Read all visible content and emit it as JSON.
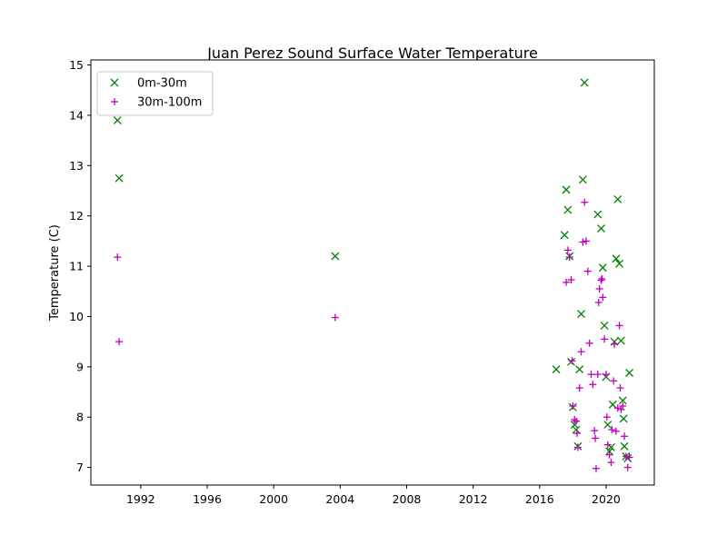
{
  "chart_data": {
    "type": "scatter",
    "title": "Juan Perez Sound Surface Water Temperature",
    "xlabel": "",
    "ylabel": "Temperature (C)",
    "xlim": [
      1989.0,
      2022.9
    ],
    "ylim": [
      6.65,
      15.1
    ],
    "xticks": [
      "1992",
      "1996",
      "2000",
      "2004",
      "2008",
      "2012",
      "2016",
      "2020"
    ],
    "yticks": [
      "7",
      "8",
      "9",
      "10",
      "11",
      "12",
      "13",
      "14",
      "15"
    ],
    "legend_position": "top-left",
    "grid": false,
    "series": [
      {
        "name": "0m-30m",
        "marker": "x",
        "color": "#008000",
        "points": [
          [
            1990.6,
            13.9
          ],
          [
            1990.7,
            12.75
          ],
          [
            2003.7,
            11.2
          ],
          [
            2017.0,
            8.95
          ],
          [
            2017.5,
            11.62
          ],
          [
            2017.6,
            12.52
          ],
          [
            2017.7,
            12.12
          ],
          [
            2017.8,
            11.2
          ],
          [
            2017.9,
            9.1
          ],
          [
            2018.0,
            8.2
          ],
          [
            2018.1,
            7.85
          ],
          [
            2018.2,
            7.75
          ],
          [
            2018.3,
            7.42
          ],
          [
            2018.4,
            8.95
          ],
          [
            2018.5,
            10.05
          ],
          [
            2018.6,
            12.72
          ],
          [
            2018.7,
            14.65
          ],
          [
            2019.5,
            12.03
          ],
          [
            2019.7,
            11.75
          ],
          [
            2019.8,
            10.97
          ],
          [
            2019.9,
            9.82
          ],
          [
            2020.0,
            8.8
          ],
          [
            2020.1,
            7.85
          ],
          [
            2020.2,
            7.32
          ],
          [
            2020.3,
            7.4
          ],
          [
            2020.4,
            8.25
          ],
          [
            2020.5,
            9.5
          ],
          [
            2020.6,
            11.15
          ],
          [
            2020.7,
            12.33
          ],
          [
            2020.8,
            11.05
          ],
          [
            2020.9,
            9.52
          ],
          [
            2021.0,
            8.33
          ],
          [
            2021.05,
            7.97
          ],
          [
            2021.1,
            7.42
          ],
          [
            2021.2,
            7.22
          ],
          [
            2021.3,
            7.18
          ],
          [
            2021.4,
            8.88
          ]
        ]
      },
      {
        "name": "30m-100m",
        "marker": "+",
        "color": "#bf00bf",
        "points": [
          [
            1990.6,
            11.18
          ],
          [
            1990.7,
            9.5
          ],
          [
            2003.7,
            9.98
          ],
          [
            2017.6,
            10.68
          ],
          [
            2017.7,
            11.32
          ],
          [
            2017.8,
            11.18
          ],
          [
            2017.9,
            10.73
          ],
          [
            2017.95,
            9.12
          ],
          [
            2018.0,
            8.22
          ],
          [
            2018.1,
            7.95
          ],
          [
            2018.2,
            7.92
          ],
          [
            2018.25,
            7.68
          ],
          [
            2018.3,
            7.4
          ],
          [
            2018.4,
            8.58
          ],
          [
            2018.5,
            9.3
          ],
          [
            2018.6,
            11.48
          ],
          [
            2018.7,
            12.27
          ],
          [
            2018.8,
            11.5
          ],
          [
            2018.9,
            10.9
          ],
          [
            2019.0,
            9.47
          ],
          [
            2019.1,
            8.85
          ],
          [
            2019.2,
            8.65
          ],
          [
            2019.3,
            7.73
          ],
          [
            2019.35,
            7.58
          ],
          [
            2019.4,
            6.98
          ],
          [
            2019.5,
            8.85
          ],
          [
            2019.55,
            10.28
          ],
          [
            2019.6,
            10.55
          ],
          [
            2019.7,
            10.72
          ],
          [
            2019.75,
            10.75
          ],
          [
            2019.8,
            10.38
          ],
          [
            2019.9,
            9.55
          ],
          [
            2020.0,
            8.85
          ],
          [
            2020.05,
            8.0
          ],
          [
            2020.1,
            7.45
          ],
          [
            2020.2,
            7.25
          ],
          [
            2020.3,
            7.1
          ],
          [
            2020.35,
            7.75
          ],
          [
            2020.45,
            8.72
          ],
          [
            2020.5,
            9.45
          ],
          [
            2020.6,
            7.72
          ],
          [
            2020.7,
            8.18
          ],
          [
            2020.8,
            9.82
          ],
          [
            2020.85,
            8.58
          ],
          [
            2020.9,
            8.15
          ],
          [
            2021.0,
            8.22
          ],
          [
            2021.1,
            7.62
          ],
          [
            2021.2,
            7.22
          ],
          [
            2021.3,
            7.0
          ],
          [
            2021.4,
            7.2
          ]
        ]
      }
    ]
  }
}
